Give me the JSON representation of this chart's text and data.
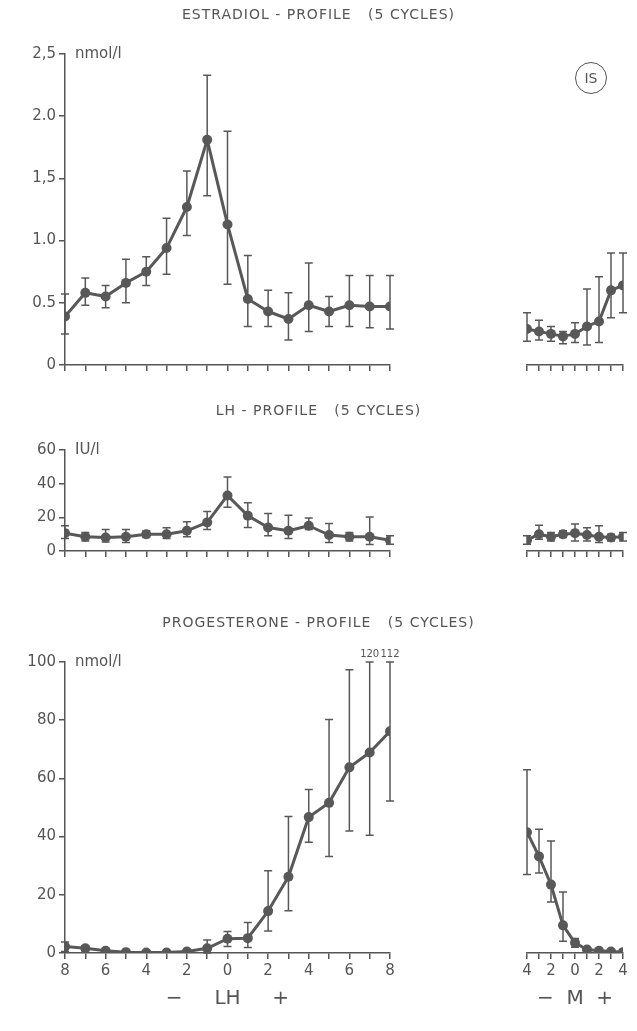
{
  "chart_data": [
    {
      "type": "line",
      "title": "ESTRADIOL - PROFILE   (5 CYCLES)",
      "ylabel": "nmol/l",
      "color": "#585858",
      "marker": "circle",
      "tick_labels": "y",
      "x": [
        -8,
        -7,
        -6,
        -5,
        -4,
        -3,
        -2,
        -1,
        0,
        1,
        2,
        3,
        4,
        5,
        6,
        7,
        8
      ],
      "values": [
        0.39,
        0.58,
        0.55,
        0.66,
        0.75,
        0.94,
        1.27,
        1.81,
        1.13,
        0.53,
        0.43,
        0.37,
        0.48,
        0.43,
        0.48,
        0.47,
        0.47
      ],
      "errors": [
        [
          0.25,
          0.57
        ],
        [
          0.48,
          0.7
        ],
        [
          0.46,
          0.64
        ],
        [
          0.5,
          0.85
        ],
        [
          0.64,
          0.87
        ],
        [
          0.73,
          1.18
        ],
        [
          1.04,
          1.56
        ],
        [
          1.36,
          2.33
        ],
        [
          0.65,
          1.88
        ],
        [
          0.31,
          0.88
        ],
        [
          0.31,
          0.6
        ],
        [
          0.2,
          0.58
        ],
        [
          0.27,
          0.82
        ],
        [
          0.31,
          0.55
        ],
        [
          0.31,
          0.72
        ],
        [
          0.3,
          0.72
        ],
        [
          0.29,
          0.72
        ]
      ],
      "xlim": [
        -8,
        8
      ],
      "xticks": [
        {
          "value": -8,
          "label": null
        },
        {
          "value": -7,
          "label": null
        },
        {
          "value": -6,
          "label": null
        },
        {
          "value": -5,
          "label": null
        },
        {
          "value": -4,
          "label": null
        },
        {
          "value": -3,
          "label": null
        },
        {
          "value": -2,
          "label": null
        },
        {
          "value": -1,
          "label": null
        },
        {
          "value": 0,
          "label": null
        },
        {
          "value": 1,
          "label": null
        },
        {
          "value": 2,
          "label": null
        },
        {
          "value": 3,
          "label": null
        },
        {
          "value": 4,
          "label": null
        },
        {
          "value": 5,
          "label": null
        },
        {
          "value": 6,
          "label": null
        },
        {
          "value": 7,
          "label": null
        },
        {
          "value": 8,
          "label": null
        }
      ],
      "ylim": [
        0,
        2.5
      ],
      "yticks": [
        0,
        {
          "value": 0.5,
          "label": "0.5"
        },
        {
          "value": 1,
          "label": "1.0"
        },
        {
          "value": 1.5,
          "label": "1,5"
        },
        {
          "value": 2,
          "label": "2.0"
        },
        {
          "value": 2.5,
          "label": "2,5"
        }
      ]
    },
    {
      "type": "line",
      "color": "#585858",
      "marker": "circle",
      "tick_labels": false,
      "annotations": [
        "IS"
      ],
      "x": [
        -4,
        -3,
        -2,
        -1,
        0,
        1,
        2,
        3,
        4
      ],
      "values": [
        0.29,
        0.27,
        0.25,
        0.23,
        0.25,
        0.31,
        0.35,
        0.6,
        0.64
      ],
      "errors": [
        [
          0.19,
          0.42
        ],
        [
          0.2,
          0.36
        ],
        [
          0.19,
          0.31
        ],
        [
          0.17,
          0.27
        ],
        [
          0.18,
          0.34
        ],
        [
          0.16,
          0.61
        ],
        [
          0.18,
          0.71
        ],
        [
          0.38,
          0.9
        ],
        [
          0.42,
          0.9
        ]
      ],
      "xlim": [
        -4,
        4
      ],
      "xticks": [
        {
          "value": -4,
          "label": null
        },
        {
          "value": -3,
          "label": null
        },
        {
          "value": -2,
          "label": null
        },
        {
          "value": -1,
          "label": null
        },
        {
          "value": 0,
          "label": null
        },
        {
          "value": 1,
          "label": null
        },
        {
          "value": 2,
          "label": null
        },
        {
          "value": 3,
          "label": null
        },
        {
          "value": 4,
          "label": null
        }
      ],
      "ylim": [
        0,
        2.5
      ]
    },
    {
      "type": "line",
      "title": "LH - PROFILE   (5 CYCLES)",
      "ylabel": "IU/l",
      "color": "#585858",
      "marker": "circle",
      "tick_labels": "y",
      "x": [
        -8,
        -7,
        -6,
        -5,
        -4,
        -3,
        -2,
        -1,
        0,
        1,
        2,
        3,
        4,
        5,
        6,
        7,
        8
      ],
      "values": [
        10.6,
        8.5,
        8,
        8.5,
        10,
        10,
        12,
        17,
        33,
        21,
        14,
        12,
        15,
        9.5,
        8.5,
        8.5,
        6.4
      ],
      "errors": [
        [
          7.4,
          15
        ],
        [
          6,
          11
        ],
        [
          5.3,
          12.8
        ],
        [
          5,
          12.8
        ],
        [
          8,
          12
        ],
        [
          7.4,
          13.8
        ],
        [
          8.5,
          17.4
        ],
        [
          12.8,
          23.4
        ],
        [
          26,
          44
        ],
        [
          14,
          28.7
        ],
        [
          9,
          22.3
        ],
        [
          7.4,
          21.3
        ],
        [
          12.8,
          19.6
        ],
        [
          5,
          16.4
        ],
        [
          6,
          11
        ],
        [
          3.8,
          20.2
        ],
        [
          4,
          9
        ]
      ],
      "xlim": [
        -8,
        8
      ],
      "xticks": [
        {
          "value": -8,
          "label": null
        },
        {
          "value": -7,
          "label": null
        },
        {
          "value": -6,
          "label": null
        },
        {
          "value": -5,
          "label": null
        },
        {
          "value": -4,
          "label": null
        },
        {
          "value": -3,
          "label": null
        },
        {
          "value": -2,
          "label": null
        },
        {
          "value": -1,
          "label": null
        },
        {
          "value": 0,
          "label": null
        },
        {
          "value": 1,
          "label": null
        },
        {
          "value": 2,
          "label": null
        },
        {
          "value": 3,
          "label": null
        },
        {
          "value": 4,
          "label": null
        },
        {
          "value": 5,
          "label": null
        },
        {
          "value": 6,
          "label": null
        },
        {
          "value": 7,
          "label": null
        },
        {
          "value": 8,
          "label": null
        }
      ],
      "ylim": [
        0,
        60
      ],
      "yticks": [
        0,
        20,
        40,
        60
      ]
    },
    {
      "type": "line",
      "color": "#585858",
      "marker": "circle",
      "tick_labels": false,
      "x": [
        -4,
        -3,
        -2,
        -1,
        0,
        1,
        2,
        3,
        4
      ],
      "values": [
        6.4,
        10,
        8.5,
        10,
        10.6,
        9.5,
        8.5,
        8,
        8.5
      ],
      "errors": [
        [
          4,
          9
        ],
        [
          7,
          15.3
        ],
        [
          6,
          11
        ],
        [
          8,
          12
        ],
        [
          6,
          16
        ],
        [
          6,
          13.8
        ],
        [
          5,
          15
        ],
        [
          6,
          10
        ],
        [
          6,
          11
        ]
      ],
      "xlim": [
        -4,
        4
      ],
      "xticks": [
        {
          "value": -4,
          "label": null
        },
        {
          "value": -3,
          "label": null
        },
        {
          "value": -2,
          "label": null
        },
        {
          "value": -1,
          "label": null
        },
        {
          "value": 0,
          "label": null
        },
        {
          "value": 1,
          "label": null
        },
        {
          "value": 2,
          "label": null
        },
        {
          "value": 3,
          "label": null
        },
        {
          "value": 4,
          "label": null
        }
      ],
      "ylim": [
        0,
        60
      ]
    },
    {
      "type": "line",
      "title": "PROGESTERONE - PROFILE   (5 CYCLES)",
      "ylabel": "nmol/l",
      "xlabel": "−     LH     +",
      "color": "#585858",
      "marker": "circle",
      "annotations": [
        {
          "text": "120",
          "x": 7,
          "y": 100
        },
        {
          "text": "112",
          "x": 8,
          "y": 100
        }
      ],
      "x": [
        -8,
        -7,
        -6,
        -5,
        -4,
        -3,
        -2,
        -1,
        0,
        1,
        2,
        3,
        4,
        5,
        6,
        7,
        8
      ],
      "values": [
        2.2,
        1.6,
        0.8,
        0.3,
        0.2,
        0.2,
        0.5,
        1.6,
        4.9,
        5.1,
        14.4,
        26.2,
        46.7,
        51.6,
        63.8,
        68.9,
        76.2
      ],
      "errors": [
        [
          0.5,
          3.8
        ],
        [
          0.8,
          2.5
        ],
        null,
        null,
        null,
        null,
        null,
        [
          0,
          4.5
        ],
        [
          2.2,
          7.4
        ],
        [
          1.9,
          10.5
        ],
        [
          7.6,
          28.3
        ],
        [
          14.5,
          46.9
        ],
        [
          38.1,
          56.2
        ],
        [
          33.2,
          80.2
        ],
        [
          41.9,
          97.3
        ],
        [
          40.5,
          100
        ],
        [
          52.2,
          100
        ]
      ],
      "xlim": [
        -8,
        8
      ],
      "xticks": [
        {
          "value": -8,
          "label": "8"
        },
        {
          "value": -7,
          "label": null
        },
        {
          "value": -6,
          "label": "6"
        },
        {
          "value": -5,
          "label": null
        },
        {
          "value": -4,
          "label": "4"
        },
        {
          "value": -3,
          "label": null
        },
        {
          "value": -2,
          "label": "2"
        },
        {
          "value": -1,
          "label": null
        },
        0,
        {
          "value": 1,
          "label": null
        },
        2,
        {
          "value": 3,
          "label": null
        },
        4,
        {
          "value": 5,
          "label": null
        },
        6,
        {
          "value": 7,
          "label": null
        },
        8
      ],
      "ylim": [
        0,
        100
      ],
      "yticks": [
        0,
        20,
        40,
        60,
        80,
        100
      ]
    },
    {
      "type": "line",
      "xlabel": "−  M  +",
      "color": "#585858",
      "marker": "circle",
      "tick_labels": "x",
      "x": [
        -4,
        -3,
        -2,
        -1,
        0,
        1,
        2,
        3,
        4
      ],
      "values": [
        41.5,
        33.2,
        23.5,
        9.5,
        3.5,
        1.2,
        0.8,
        0.5,
        0.3
      ],
      "errors": [
        [
          27,
          63
        ],
        [
          27.5,
          42.5
        ],
        [
          17.5,
          38.5
        ],
        [
          4,
          21
        ],
        [
          2,
          5
        ],
        null,
        null,
        null,
        null
      ],
      "xlim": [
        -4,
        4
      ],
      "xticks": [
        {
          "value": -4,
          "label": "4"
        },
        {
          "value": -3,
          "label": null
        },
        {
          "value": -2,
          "label": "2"
        },
        {
          "value": -1,
          "label": null
        },
        0,
        {
          "value": 1,
          "label": null
        },
        2,
        {
          "value": 3,
          "label": null
        },
        4
      ],
      "ylim": [
        0,
        100
      ]
    }
  ]
}
